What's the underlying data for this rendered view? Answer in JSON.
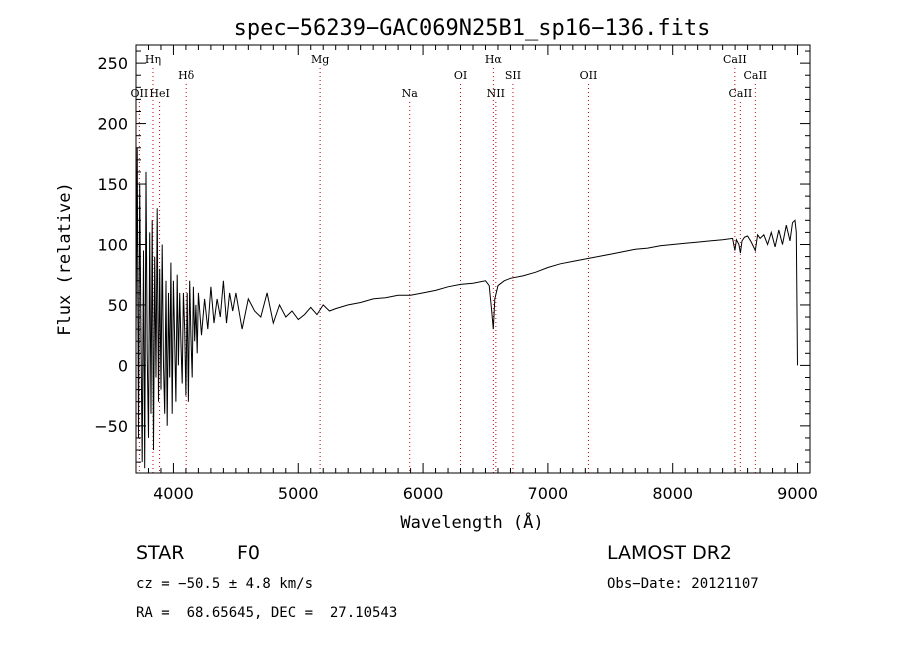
{
  "chart_data": {
    "type": "line",
    "title": "spec−56239−GAC069N25B1_sp16−136.fits",
    "xlabel": "Wavelength (Å)",
    "ylabel": "Flux (relative)",
    "xlim": [
      3700,
      9100
    ],
    "ylim": [
      -89,
      265
    ],
    "x_ticks": [
      4000,
      5000,
      6000,
      7000,
      8000,
      9000
    ],
    "y_ticks": [
      -50,
      0,
      50,
      100,
      150,
      200,
      250
    ],
    "grid": false,
    "line_color": "#000000",
    "marker_color": "#cc0000",
    "spectral_lines": [
      {
        "name": "OII",
        "wavelength": 3727,
        "label_row": 3
      },
      {
        "name": "Hη",
        "wavelength": 3836,
        "label_row": 1
      },
      {
        "name": "HeI",
        "wavelength": 3889,
        "label_row": 3
      },
      {
        "name": "Hδ",
        "wavelength": 4102,
        "label_row": 2
      },
      {
        "name": "Mg",
        "wavelength": 5175,
        "label_row": 1
      },
      {
        "name": "Na",
        "wavelength": 5893,
        "label_row": 3
      },
      {
        "name": "OI",
        "wavelength": 6300,
        "label_row": 2
      },
      {
        "name": "Hα",
        "wavelength": 6563,
        "label_row": 1
      },
      {
        "name": "NII",
        "wavelength": 6583,
        "label_row": 3
      },
      {
        "name": "SII",
        "wavelength": 6720,
        "label_row": 2
      },
      {
        "name": "OII",
        "wavelength": 7325,
        "label_row": 2
      },
      {
        "name": "CaII",
        "wavelength": 8498,
        "label_row": 1
      },
      {
        "name": "CaII",
        "wavelength": 8542,
        "label_row": 3
      },
      {
        "name": "CaII",
        "wavelength": 8662,
        "label_row": 2
      }
    ],
    "series": [
      {
        "x": [
          3700,
          3710,
          3720,
          3730,
          3740,
          3750,
          3760,
          3770,
          3780,
          3790,
          3800,
          3810,
          3820,
          3830,
          3840,
          3850,
          3860,
          3870,
          3880,
          3890,
          3900,
          3910,
          3920,
          3930,
          3940,
          3950,
          3960,
          3970,
          3980,
          3990,
          4000,
          4010,
          4020,
          4030,
          4040,
          4050,
          4060,
          4070,
          4080,
          4090,
          4100,
          4110,
          4120,
          4130,
          4140,
          4150,
          4160,
          4170,
          4180,
          4190,
          4200,
          4225,
          4250,
          4275,
          4300,
          4325,
          4350,
          4375,
          4400,
          4425,
          4450,
          4475,
          4500,
          4550,
          4600,
          4650,
          4700,
          4750,
          4800,
          4850,
          4900,
          4950,
          5000,
          5050,
          5100,
          5150,
          5200,
          5250,
          5300,
          5400,
          5500,
          5600,
          5700,
          5800,
          5900,
          6000,
          6100,
          6200,
          6300,
          6400,
          6500,
          6530,
          6550,
          6563,
          6575,
          6600,
          6650,
          6700,
          6800,
          6900,
          7000,
          7100,
          7200,
          7300,
          7400,
          7500,
          7600,
          7700,
          7800,
          7900,
          8000,
          8100,
          8200,
          8300,
          8400,
          8480,
          8498,
          8510,
          8530,
          8542,
          8555,
          8575,
          8600,
          8630,
          8662,
          8680,
          8700,
          8730,
          8760,
          8790,
          8820,
          8850,
          8880,
          8910,
          8940,
          8960,
          8980,
          8990,
          9000
        ],
        "y": [
          20,
          180,
          -60,
          150,
          20,
          -80,
          95,
          -85,
          160,
          10,
          -60,
          110,
          -40,
          120,
          -70,
          90,
          -10,
          130,
          -30,
          80,
          -20,
          100,
          0,
          -40,
          70,
          -50,
          60,
          -10,
          85,
          -40,
          70,
          20,
          -30,
          75,
          0,
          60,
          20,
          -15,
          60,
          30,
          -25,
          60,
          -30,
          70,
          25,
          -10,
          65,
          20,
          50,
          10,
          60,
          25,
          55,
          30,
          65,
          35,
          55,
          40,
          70,
          35,
          60,
          45,
          60,
          30,
          55,
          45,
          40,
          60,
          35,
          50,
          40,
          45,
          38,
          42,
          48,
          42,
          50,
          45,
          47,
          50,
          52,
          55,
          56,
          58,
          58,
          60,
          62,
          65,
          67,
          68,
          70,
          66,
          45,
          30,
          55,
          66,
          70,
          72,
          74,
          77,
          81,
          84,
          86,
          88,
          90,
          92,
          94,
          96,
          97,
          99,
          100,
          101,
          102,
          103,
          104,
          105,
          95,
          104,
          100,
          93,
          103,
          106,
          107,
          102,
          95,
          108,
          105,
          108,
          100,
          110,
          98,
          112,
          100,
          116,
          103,
          118,
          120,
          110,
          0
        ]
      }
    ]
  },
  "info": {
    "object_class": "STAR",
    "subclass": "F0",
    "survey": "LAMOST DR2",
    "cz": "cz = −50.5 ± 4.8 km/s",
    "obs_date": "Obs−Date: 20121107",
    "coords": "RA =  68.65645, DEC =  27.10543"
  }
}
